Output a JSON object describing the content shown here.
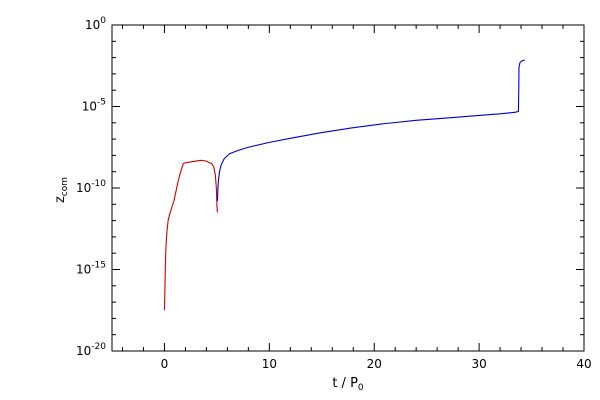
{
  "chart_data": {
    "type": "line",
    "title": "",
    "xlabel_main": "t / P",
    "xlabel_sub": "0",
    "ylabel_main": "z",
    "ylabel_sub": "com",
    "xlim": [
      -5,
      40
    ],
    "ylim_exp": [
      -20,
      0
    ],
    "log_y": true,
    "grid": false,
    "legend": "none",
    "x_ticks": [
      {
        "value": 0,
        "label": "0"
      },
      {
        "value": 10,
        "label": "10"
      },
      {
        "value": 20,
        "label": "20"
      },
      {
        "value": 30,
        "label": "30"
      },
      {
        "value": 40,
        "label": "40"
      }
    ],
    "y_ticks": [
      {
        "exp": 0,
        "base": "10",
        "sup": "0"
      },
      {
        "exp": -5,
        "base": "10",
        "sup": "-5"
      },
      {
        "exp": -10,
        "base": "10",
        "sup": "-10"
      },
      {
        "exp": -15,
        "base": "10",
        "sup": "-15"
      },
      {
        "exp": -20,
        "base": "10",
        "sup": "-20"
      }
    ],
    "series": [
      {
        "color": "#cc0000",
        "points": [
          [
            0.0,
            -17.5
          ],
          [
            0.02,
            -17.0
          ],
          [
            0.05,
            -16.0
          ],
          [
            0.08,
            -15.0
          ],
          [
            0.12,
            -14.0
          ],
          [
            0.18,
            -13.2
          ],
          [
            0.25,
            -12.6
          ],
          [
            0.35,
            -12.0
          ],
          [
            0.5,
            -11.6
          ],
          [
            0.7,
            -11.2
          ],
          [
            0.9,
            -10.8
          ],
          [
            1.1,
            -10.2
          ],
          [
            1.3,
            -9.6
          ],
          [
            1.5,
            -9.1
          ],
          [
            1.7,
            -8.7
          ],
          [
            1.8,
            -8.5
          ],
          [
            2.0,
            -8.45
          ],
          [
            2.5,
            -8.4
          ],
          [
            3.0,
            -8.35
          ],
          [
            3.5,
            -8.3
          ],
          [
            4.0,
            -8.35
          ],
          [
            4.3,
            -8.45
          ],
          [
            4.5,
            -8.5
          ],
          [
            4.7,
            -8.7
          ],
          [
            4.85,
            -9.2
          ],
          [
            4.95,
            -10.0
          ],
          [
            5.0,
            -11.0
          ],
          [
            5.05,
            -11.5
          ]
        ]
      },
      {
        "color": "#0000cc",
        "points": [
          [
            5.05,
            -10.8
          ],
          [
            5.1,
            -10.0
          ],
          [
            5.15,
            -9.5
          ],
          [
            5.25,
            -9.0
          ],
          [
            5.4,
            -8.6
          ],
          [
            5.7,
            -8.2
          ],
          [
            6.2,
            -7.9
          ],
          [
            7.0,
            -7.7
          ],
          [
            8.0,
            -7.5
          ],
          [
            10.0,
            -7.2
          ],
          [
            12.0,
            -6.95
          ],
          [
            15.0,
            -6.6
          ],
          [
            18.0,
            -6.3
          ],
          [
            21.0,
            -6.05
          ],
          [
            24.0,
            -5.85
          ],
          [
            27.0,
            -5.7
          ],
          [
            30.0,
            -5.55
          ],
          [
            32.0,
            -5.45
          ],
          [
            33.5,
            -5.35
          ],
          [
            33.75,
            -5.3
          ],
          [
            33.78,
            -4.0
          ],
          [
            33.8,
            -2.6
          ],
          [
            33.9,
            -2.3
          ],
          [
            34.1,
            -2.2
          ],
          [
            34.35,
            -2.15
          ]
        ]
      }
    ]
  }
}
